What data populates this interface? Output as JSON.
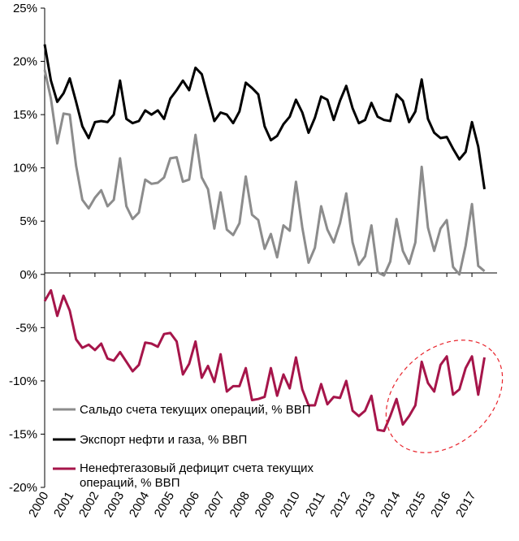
{
  "chart_data": {
    "type": "line",
    "ylim": [
      -20,
      25
    ],
    "yticks": [
      "25%",
      "20%",
      "15%",
      "10%",
      "5%",
      "0%",
      "-5%",
      "-10%",
      "-15%",
      "-20%"
    ],
    "ytick_values": [
      25,
      20,
      15,
      10,
      5,
      0,
      -5,
      -10,
      -15,
      -20
    ],
    "xlim": [
      2000,
      2018
    ],
    "xticks": [
      "2000",
      "2001",
      "2002",
      "2003",
      "2004",
      "2005",
      "2006",
      "2007",
      "2008",
      "2009",
      "2010",
      "2011",
      "2012",
      "2013",
      "2014",
      "2015",
      "2016",
      "2017"
    ],
    "xtick_values": [
      2000,
      2001,
      2002,
      2003,
      2004,
      2005,
      2006,
      2007,
      2008,
      2009,
      2010,
      2011,
      2012,
      2013,
      2014,
      2015,
      2016,
      2017
    ],
    "series": [
      {
        "name": "Сальдо счета текущих  операций, % ВВП",
        "color": "#8c8c8c",
        "x": [
          2000.0,
          2000.25,
          2000.5,
          2000.75,
          2001.0,
          2001.25,
          2001.5,
          2001.75,
          2002.0,
          2002.25,
          2002.5,
          2002.75,
          2003.0,
          2003.25,
          2003.5,
          2003.75,
          2004.0,
          2004.25,
          2004.5,
          2004.75,
          2005.0,
          2005.25,
          2005.5,
          2005.75,
          2006.0,
          2006.25,
          2006.5,
          2006.75,
          2007.0,
          2007.25,
          2007.5,
          2007.75,
          2008.0,
          2008.25,
          2008.5,
          2008.75,
          2009.0,
          2009.25,
          2009.5,
          2009.75,
          2010.0,
          2010.25,
          2010.5,
          2010.75,
          2011.0,
          2011.25,
          2011.5,
          2011.75,
          2012.0,
          2012.25,
          2012.5,
          2012.75,
          2013.0,
          2013.25,
          2013.5,
          2013.75,
          2014.0,
          2014.25,
          2014.5,
          2014.75,
          2015.0,
          2015.25,
          2015.5,
          2015.75,
          2016.0,
          2016.25,
          2016.5,
          2016.75,
          2017.0,
          2017.25,
          2017.5
        ],
        "values": [
          19.2,
          16.5,
          12.3,
          15.1,
          15.0,
          10.2,
          7.0,
          6.2,
          7.2,
          7.9,
          6.4,
          7.0,
          10.9,
          6.4,
          5.2,
          5.8,
          8.9,
          8.5,
          8.6,
          9.1,
          10.9,
          11.0,
          8.7,
          8.9,
          13.1,
          9.1,
          8.0,
          4.3,
          7.7,
          4.2,
          3.7,
          4.8,
          9.2,
          5.6,
          5.1,
          2.4,
          3.8,
          1.6,
          4.6,
          4.1,
          8.7,
          4.4,
          1.1,
          2.5,
          6.4,
          4.2,
          3.0,
          4.8,
          7.6,
          3.0,
          0.9,
          1.7,
          4.6,
          0.2,
          -0.1,
          1.2,
          5.2,
          2.2,
          1.0,
          3.0,
          10.1,
          4.4,
          2.2,
          4.3,
          5.1,
          0.7,
          0.0,
          2.7,
          6.6,
          0.8,
          0.3
        ]
      },
      {
        "name": "Экспорт нефти и газа, % ВВП",
        "color": "#000000",
        "x": [
          2000.0,
          2000.25,
          2000.5,
          2000.75,
          2001.0,
          2001.25,
          2001.5,
          2001.75,
          2002.0,
          2002.25,
          2002.5,
          2002.75,
          2003.0,
          2003.25,
          2003.5,
          2003.75,
          2004.0,
          2004.25,
          2004.5,
          2004.75,
          2005.0,
          2005.25,
          2005.5,
          2005.75,
          2006.0,
          2006.25,
          2006.5,
          2006.75,
          2007.0,
          2007.25,
          2007.5,
          2007.75,
          2008.0,
          2008.25,
          2008.5,
          2008.75,
          2009.0,
          2009.25,
          2009.5,
          2009.75,
          2010.0,
          2010.25,
          2010.5,
          2010.75,
          2011.0,
          2011.25,
          2011.5,
          2011.75,
          2012.0,
          2012.25,
          2012.5,
          2012.75,
          2013.0,
          2013.25,
          2013.5,
          2013.75,
          2014.0,
          2014.25,
          2014.5,
          2014.75,
          2015.0,
          2015.25,
          2015.5,
          2015.75,
          2016.0,
          2016.25,
          2016.5,
          2016.75,
          2017.0,
          2017.25,
          2017.5
        ],
        "values": [
          21.6,
          18.2,
          16.2,
          17.0,
          18.4,
          16.2,
          13.9,
          12.8,
          14.3,
          14.4,
          14.3,
          15.0,
          18.2,
          14.6,
          14.2,
          14.4,
          15.4,
          15.0,
          15.4,
          14.6,
          16.5,
          17.3,
          18.2,
          17.3,
          19.4,
          18.8,
          16.6,
          14.4,
          15.2,
          15.0,
          14.2,
          15.3,
          18.0,
          17.5,
          16.9,
          13.9,
          12.6,
          13.0,
          14.1,
          14.8,
          16.4,
          15.2,
          13.3,
          14.7,
          16.7,
          16.4,
          14.5,
          16.3,
          17.7,
          15.6,
          14.2,
          14.5,
          16.1,
          14.8,
          14.5,
          14.4,
          16.9,
          16.3,
          14.3,
          15.3,
          18.3,
          14.6,
          13.3,
          12.8,
          12.9,
          11.8,
          10.8,
          11.5,
          14.3,
          12.0,
          8.0
        ]
      },
      {
        "name": "Ненефтегазовый дефицит счета текущих операций, % ВВП",
        "color": "#a6154a",
        "x": [
          2000.0,
          2000.25,
          2000.5,
          2000.75,
          2001.0,
          2001.25,
          2001.5,
          2001.75,
          2002.0,
          2002.25,
          2002.5,
          2002.75,
          2003.0,
          2003.25,
          2003.5,
          2003.75,
          2004.0,
          2004.25,
          2004.5,
          2004.75,
          2005.0,
          2005.25,
          2005.5,
          2005.75,
          2006.0,
          2006.25,
          2006.5,
          2006.75,
          2007.0,
          2007.25,
          2007.5,
          2007.75,
          2008.0,
          2008.25,
          2008.5,
          2008.75,
          2009.0,
          2009.25,
          2009.5,
          2009.75,
          2010.0,
          2010.25,
          2010.5,
          2010.75,
          2011.0,
          2011.25,
          2011.5,
          2011.75,
          2012.0,
          2012.25,
          2012.5,
          2012.75,
          2013.0,
          2013.25,
          2013.5,
          2013.75,
          2014.0,
          2014.25,
          2014.5,
          2014.75,
          2015.0,
          2015.25,
          2015.5,
          2015.75,
          2016.0,
          2016.25,
          2016.5,
          2016.75,
          2017.0,
          2017.25,
          2017.5
        ],
        "values": [
          -2.5,
          -1.5,
          -3.9,
          -2.0,
          -3.4,
          -6.1,
          -6.9,
          -6.6,
          -7.1,
          -6.5,
          -7.9,
          -8.1,
          -7.3,
          -8.2,
          -9.1,
          -8.5,
          -6.4,
          -6.5,
          -6.8,
          -5.6,
          -5.5,
          -6.3,
          -9.4,
          -8.4,
          -6.3,
          -9.7,
          -8.6,
          -10.1,
          -7.5,
          -11.0,
          -10.5,
          -10.5,
          -8.8,
          -11.8,
          -11.7,
          -11.5,
          -8.8,
          -11.4,
          -9.4,
          -10.7,
          -7.8,
          -10.8,
          -12.3,
          -12.3,
          -10.3,
          -12.2,
          -11.5,
          -11.6,
          -10.0,
          -12.8,
          -13.3,
          -12.8,
          -11.4,
          -14.6,
          -14.7,
          -13.3,
          -11.7,
          -14.1,
          -13.3,
          -12.3,
          -8.2,
          -10.2,
          -11.0,
          -8.5,
          -7.7,
          -11.3,
          -10.8,
          -8.8,
          -7.7,
          -11.3,
          -7.8
        ]
      }
    ],
    "annotation": {
      "type": "ellipse",
      "style": "dashed",
      "color": "#e8242c",
      "series": 2
    }
  }
}
